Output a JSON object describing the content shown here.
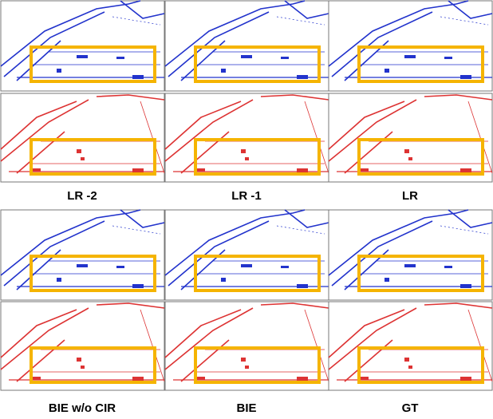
{
  "figure": {
    "captions": [
      "LR -2",
      "LR -1",
      "LR",
      "BIE w/o CIR",
      "BIE",
      "GT"
    ]
  }
}
